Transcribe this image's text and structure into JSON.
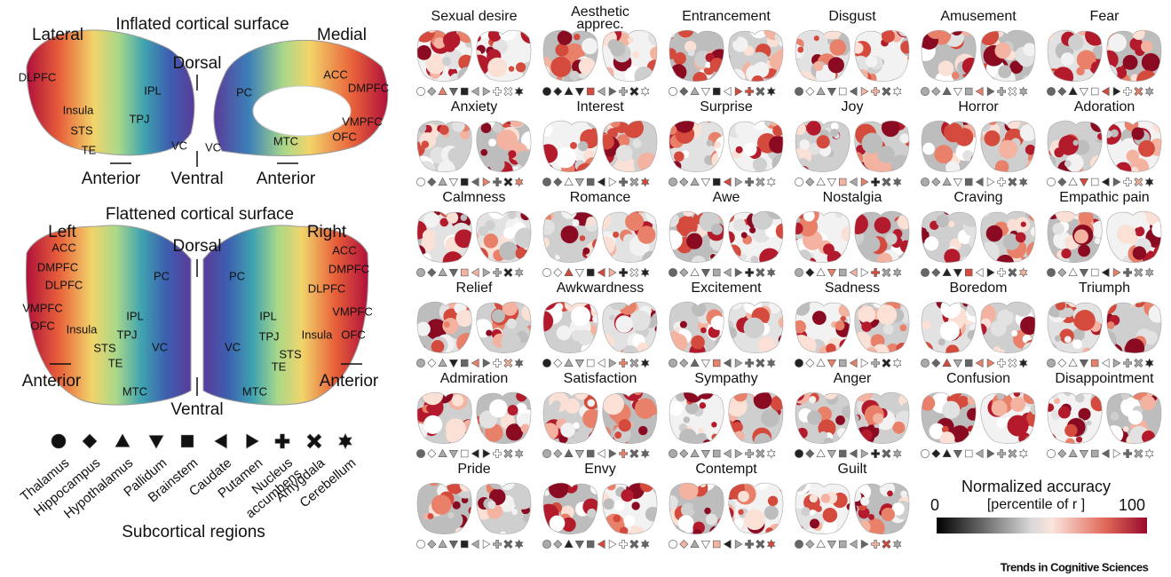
{
  "inflated": {
    "title": "Inflated cortical surface",
    "labels": [
      "Lateral",
      "Medial",
      "Dorsal",
      "Ventral",
      "Anterior",
      "Anterior",
      "DLPFC",
      "Insula",
      "STS",
      "TE",
      "IPL",
      "TPJ",
      "VC",
      "PC",
      "VC",
      "MTC",
      "ACC",
      "DMPFC",
      "VMPFC",
      "OFC"
    ]
  },
  "flattened": {
    "title": "Flattened cortical surface",
    "labels": [
      "Left",
      "Right",
      "Dorsal",
      "Ventral",
      "Anterior",
      "Anterior",
      "ACC",
      "DMPFC",
      "DLPFC",
      "VMPFC",
      "OFC",
      "Insula",
      "STS",
      "TE",
      "TPJ",
      "IPL",
      "PC",
      "VC",
      "MTC",
      "PC",
      "IPL",
      "TPJ",
      "STS",
      "TE",
      "VC",
      "MTC",
      "ACC",
      "DMPFC",
      "DLPFC",
      "VMPFC",
      "Insula",
      "OFC"
    ]
  },
  "subcortical": {
    "title": "Subcortical regions",
    "regions": [
      "Thalamus",
      "Hippocampus",
      "Hypothalamus",
      "Pallidum",
      "Brainstem",
      "Caudate",
      "Putamen",
      "Nucleus accumbens",
      "Amygdala",
      "Cerebellum"
    ]
  },
  "emotions": [
    "Sexual desire",
    "Aesthetic apprec.",
    "Entrancement",
    "Disgust",
    "Amusement",
    "Fear",
    "Anxiety",
    "Interest",
    "Surprise",
    "Joy",
    "Horror",
    "Adoration",
    "Calmness",
    "Romance",
    "Awe",
    "Nostalgia",
    "Craving",
    "Empathic pain",
    "Relief",
    "Awkwardness",
    "Excitement",
    "Sadness",
    "Boredom",
    "Triumph",
    "Admiration",
    "Satisfaction",
    "Sympathy",
    "Anger",
    "Confusion",
    "Disappointment",
    "Pride",
    "Envy",
    "Contempt",
    "Guilt"
  ],
  "colorbar": {
    "title": "Normalized accuracy",
    "subtitle": "[percentile of r ]",
    "min_label": "0",
    "max_label": "100"
  },
  "footer": "Trends in Cognitive Sciences"
}
